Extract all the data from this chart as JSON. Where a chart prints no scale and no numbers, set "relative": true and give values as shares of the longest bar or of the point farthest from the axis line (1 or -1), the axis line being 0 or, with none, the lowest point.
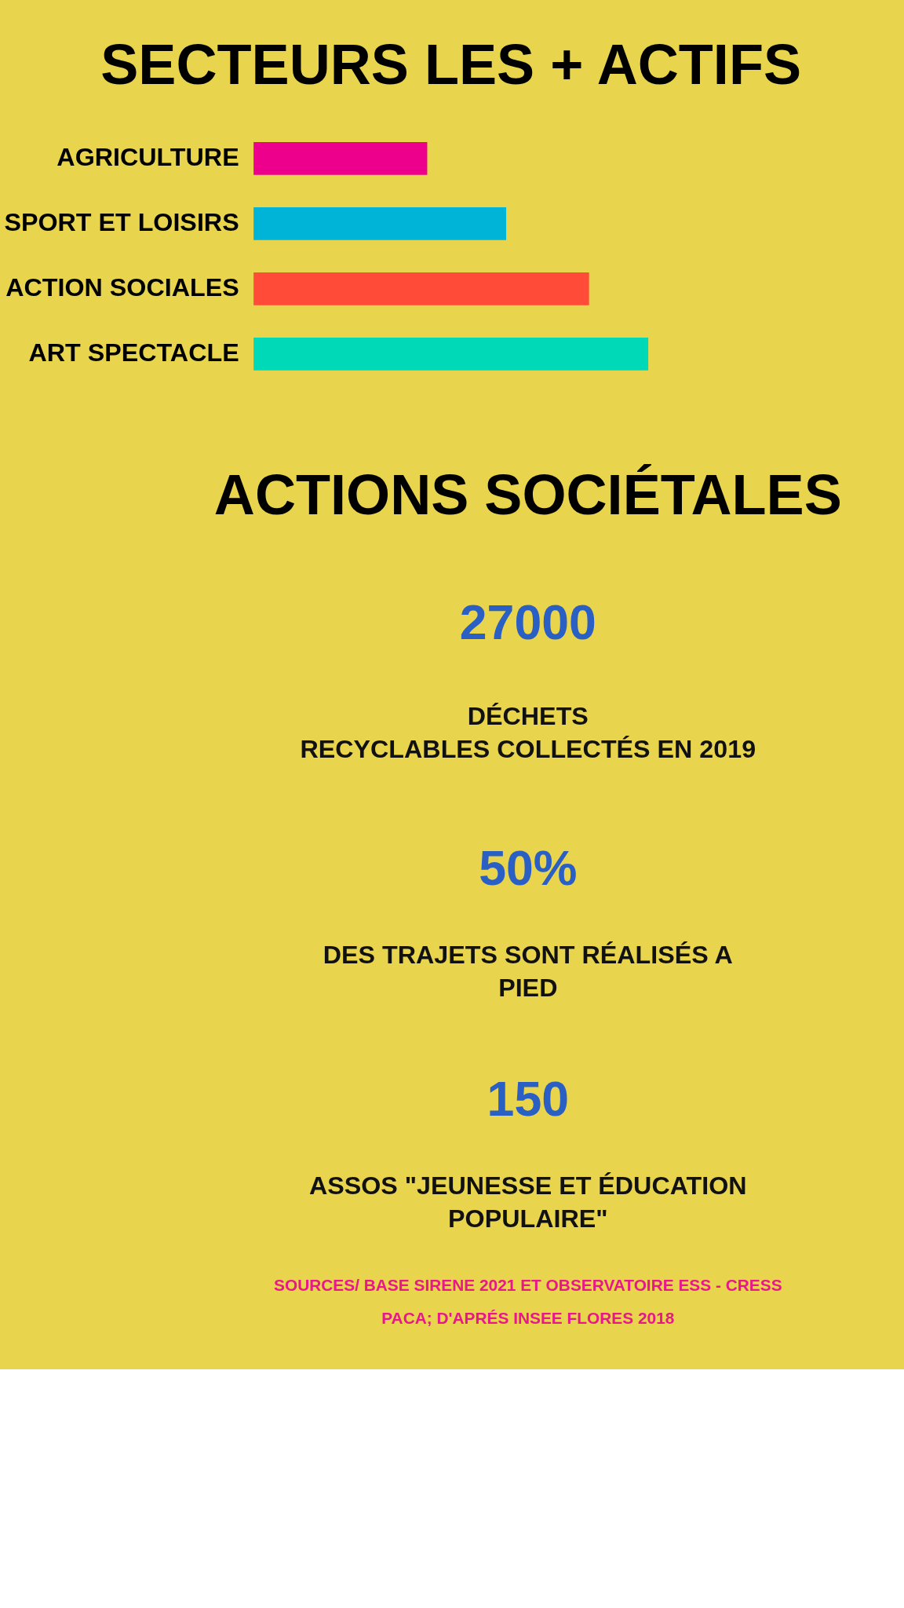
{
  "chart_data": [
    {
      "type": "bar",
      "title": "SECTEURS LES + ACTIFS",
      "orientation": "horizontal",
      "relative": true,
      "categories": [
        "AGRICULTURE",
        "SPORT ET LOISIRS",
        "ACTION SOCIALES",
        "ART SPECTACLE"
      ],
      "values": [
        0.44,
        0.64,
        0.85,
        1
      ],
      "colors": [
        "#ec008c",
        "#00b4d8",
        "#ff4b37",
        "#00d9b8"
      ]
    },
    {
      "type": "other",
      "title": "ACTIONS SOCIÉTALES",
      "annotations": [
        "27000",
        "DÉCHETS\nRECYCLABLES COLLECTÉS EN 2019",
        "50%",
        "DES TRAJETS SONT RÉALISÉS A\nPIED",
        "150",
        "ASSOS \"JEUNESSE ET ÉDUCATION\nPOPULAIRE\"",
        "SOURCES/ BASE SIRENE 2021 ET OBSERVATOIRE ESS - CRESS\nPACA; D'APRÉS INSEE FLORES 2018"
      ]
    }
  ]
}
